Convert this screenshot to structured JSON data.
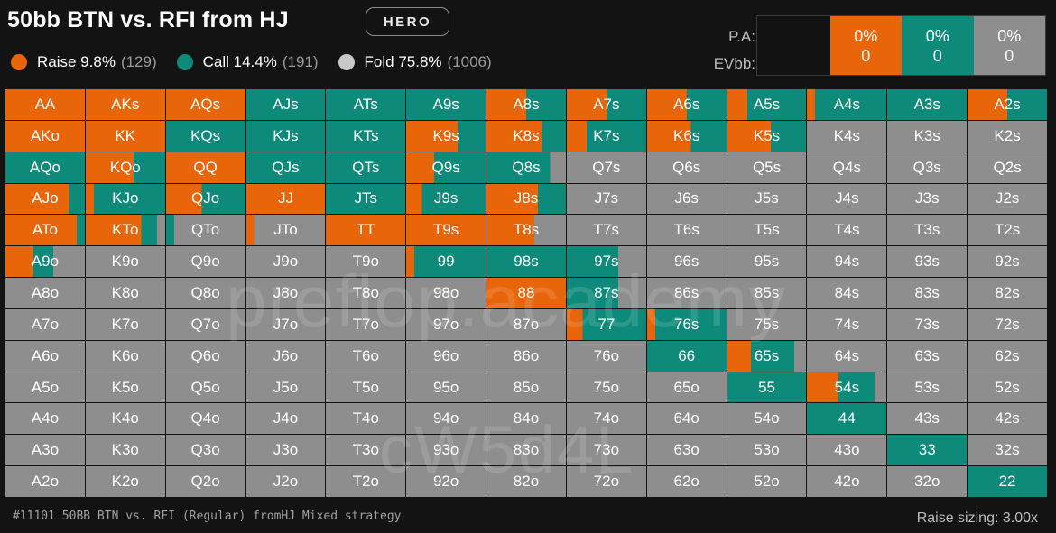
{
  "header": {
    "title": "50bb BTN vs. RFI from HJ",
    "badge": "HERO"
  },
  "legend": [
    {
      "label": "Raise 9.8%",
      "count": "(129)",
      "icon": "raise-dot",
      "color": "#e8650a"
    },
    {
      "label": "Call 14.4%",
      "count": "(191)",
      "icon": "call-dot",
      "color": "#0e8a7a"
    },
    {
      "label": "Fold 75.8%",
      "count": "(1006)",
      "icon": "fold-dot",
      "color": "#c8c8c8"
    }
  ],
  "summary": {
    "labels": [
      "P.A:",
      "EVbb:"
    ],
    "columns": [
      {
        "pct": "0%",
        "value": "0",
        "color": "#e8650a"
      },
      {
        "pct": "0%",
        "value": "0",
        "color": "#0e8a7a"
      },
      {
        "pct": "0%",
        "value": "0",
        "color": "#8e8e8e"
      }
    ]
  },
  "colors": {
    "raise": "#e8650a",
    "call": "#0e8a7a",
    "fold": "#8e8e8e"
  },
  "hands": [
    {
      "label": "AA",
      "raise": 100,
      "call": 0
    },
    {
      "label": "AKs",
      "raise": 100,
      "call": 0
    },
    {
      "label": "AQs",
      "raise": 100,
      "call": 0
    },
    {
      "label": "AJs",
      "raise": 0,
      "call": 100
    },
    {
      "label": "ATs",
      "raise": 0,
      "call": 100
    },
    {
      "label": "A9s",
      "raise": 0,
      "call": 100
    },
    {
      "label": "A8s",
      "raise": 50,
      "call": 50
    },
    {
      "label": "A7s",
      "raise": 50,
      "call": 50
    },
    {
      "label": "A6s",
      "raise": 50,
      "call": 50
    },
    {
      "label": "A5s",
      "raise": 25,
      "call": 75
    },
    {
      "label": "A4s",
      "raise": 10,
      "call": 90
    },
    {
      "label": "A3s",
      "raise": 0,
      "call": 100
    },
    {
      "label": "A2s",
      "raise": 50,
      "call": 50
    },
    {
      "label": "AKo",
      "raise": 100,
      "call": 0
    },
    {
      "label": "KK",
      "raise": 100,
      "call": 0
    },
    {
      "label": "KQs",
      "raise": 0,
      "call": 100
    },
    {
      "label": "KJs",
      "raise": 0,
      "call": 100
    },
    {
      "label": "KTs",
      "raise": 0,
      "call": 100
    },
    {
      "label": "K9s",
      "raise": 65,
      "call": 35
    },
    {
      "label": "K8s",
      "raise": 70,
      "call": 30
    },
    {
      "label": "K7s",
      "raise": 25,
      "call": 75
    },
    {
      "label": "K6s",
      "raise": 55,
      "call": 45
    },
    {
      "label": "K5s",
      "raise": 55,
      "call": 45
    },
    {
      "label": "K4s",
      "raise": 0,
      "call": 0
    },
    {
      "label": "K3s",
      "raise": 0,
      "call": 0
    },
    {
      "label": "K2s",
      "raise": 0,
      "call": 0
    },
    {
      "label": "AQo",
      "raise": 0,
      "call": 100
    },
    {
      "label": "KQo",
      "raise": 60,
      "call": 40
    },
    {
      "label": "QQ",
      "raise": 100,
      "call": 0
    },
    {
      "label": "QJs",
      "raise": 0,
      "call": 100
    },
    {
      "label": "QTs",
      "raise": 0,
      "call": 100
    },
    {
      "label": "Q9s",
      "raise": 35,
      "call": 65
    },
    {
      "label": "Q8s",
      "raise": 0,
      "call": 80
    },
    {
      "label": "Q7s",
      "raise": 0,
      "call": 0
    },
    {
      "label": "Q6s",
      "raise": 0,
      "call": 0
    },
    {
      "label": "Q5s",
      "raise": 0,
      "call": 0
    },
    {
      "label": "Q4s",
      "raise": 0,
      "call": 0
    },
    {
      "label": "Q3s",
      "raise": 0,
      "call": 0
    },
    {
      "label": "Q2s",
      "raise": 0,
      "call": 0
    },
    {
      "label": "AJo",
      "raise": 80,
      "call": 20
    },
    {
      "label": "KJo",
      "raise": 10,
      "call": 90
    },
    {
      "label": "QJo",
      "raise": 45,
      "call": 55
    },
    {
      "label": "JJ",
      "raise": 100,
      "call": 0
    },
    {
      "label": "JTs",
      "raise": 0,
      "call": 100
    },
    {
      "label": "J9s",
      "raise": 20,
      "call": 80
    },
    {
      "label": "J8s",
      "raise": 65,
      "call": 35
    },
    {
      "label": "J7s",
      "raise": 0,
      "call": 0
    },
    {
      "label": "J6s",
      "raise": 0,
      "call": 0
    },
    {
      "label": "J5s",
      "raise": 0,
      "call": 0
    },
    {
      "label": "J4s",
      "raise": 0,
      "call": 0
    },
    {
      "label": "J3s",
      "raise": 0,
      "call": 0
    },
    {
      "label": "J2s",
      "raise": 0,
      "call": 0
    },
    {
      "label": "ATo",
      "raise": 90,
      "call": 10
    },
    {
      "label": "KTo",
      "raise": 70,
      "call": 20
    },
    {
      "label": "QTo",
      "raise": 0,
      "call": 10
    },
    {
      "label": "JTo",
      "raise": 10,
      "call": 0
    },
    {
      "label": "TT",
      "raise": 100,
      "call": 0
    },
    {
      "label": "T9s",
      "raise": 100,
      "call": 0
    },
    {
      "label": "T8s",
      "raise": 60,
      "call": 0
    },
    {
      "label": "T7s",
      "raise": 0,
      "call": 0
    },
    {
      "label": "T6s",
      "raise": 0,
      "call": 0
    },
    {
      "label": "T5s",
      "raise": 0,
      "call": 0
    },
    {
      "label": "T4s",
      "raise": 0,
      "call": 0
    },
    {
      "label": "T3s",
      "raise": 0,
      "call": 0
    },
    {
      "label": "T2s",
      "raise": 0,
      "call": 0
    },
    {
      "label": "A9o",
      "raise": 35,
      "call": 25
    },
    {
      "label": "K9o",
      "raise": 0,
      "call": 0
    },
    {
      "label": "Q9o",
      "raise": 0,
      "call": 0
    },
    {
      "label": "J9o",
      "raise": 0,
      "call": 0
    },
    {
      "label": "T9o",
      "raise": 0,
      "call": 0
    },
    {
      "label": "99",
      "raise": 10,
      "call": 90
    },
    {
      "label": "98s",
      "raise": 0,
      "call": 100
    },
    {
      "label": "97s",
      "raise": 0,
      "call": 65
    },
    {
      "label": "96s",
      "raise": 0,
      "call": 0
    },
    {
      "label": "95s",
      "raise": 0,
      "call": 0
    },
    {
      "label": "94s",
      "raise": 0,
      "call": 0
    },
    {
      "label": "93s",
      "raise": 0,
      "call": 0
    },
    {
      "label": "92s",
      "raise": 0,
      "call": 0
    },
    {
      "label": "A8o",
      "raise": 0,
      "call": 0
    },
    {
      "label": "K8o",
      "raise": 0,
      "call": 0
    },
    {
      "label": "Q8o",
      "raise": 0,
      "call": 0
    },
    {
      "label": "J8o",
      "raise": 0,
      "call": 0
    },
    {
      "label": "T8o",
      "raise": 0,
      "call": 0
    },
    {
      "label": "98o",
      "raise": 0,
      "call": 0
    },
    {
      "label": "88",
      "raise": 100,
      "call": 0
    },
    {
      "label": "87s",
      "raise": 0,
      "call": 65
    },
    {
      "label": "86s",
      "raise": 0,
      "call": 0
    },
    {
      "label": "85s",
      "raise": 0,
      "call": 0
    },
    {
      "label": "84s",
      "raise": 0,
      "call": 0
    },
    {
      "label": "83s",
      "raise": 0,
      "call": 0
    },
    {
      "label": "82s",
      "raise": 0,
      "call": 0
    },
    {
      "label": "A7o",
      "raise": 0,
      "call": 0
    },
    {
      "label": "K7o",
      "raise": 0,
      "call": 0
    },
    {
      "label": "Q7o",
      "raise": 0,
      "call": 0
    },
    {
      "label": "J7o",
      "raise": 0,
      "call": 0
    },
    {
      "label": "T7o",
      "raise": 0,
      "call": 0
    },
    {
      "label": "97o",
      "raise": 0,
      "call": 0
    },
    {
      "label": "87o",
      "raise": 0,
      "call": 0
    },
    {
      "label": "77",
      "raise": 20,
      "call": 80
    },
    {
      "label": "76s",
      "raise": 10,
      "call": 90
    },
    {
      "label": "75s",
      "raise": 0,
      "call": 0
    },
    {
      "label": "74s",
      "raise": 0,
      "call": 0
    },
    {
      "label": "73s",
      "raise": 0,
      "call": 0
    },
    {
      "label": "72s",
      "raise": 0,
      "call": 0
    },
    {
      "label": "A6o",
      "raise": 0,
      "call": 0
    },
    {
      "label": "K6o",
      "raise": 0,
      "call": 0
    },
    {
      "label": "Q6o",
      "raise": 0,
      "call": 0
    },
    {
      "label": "J6o",
      "raise": 0,
      "call": 0
    },
    {
      "label": "T6o",
      "raise": 0,
      "call": 0
    },
    {
      "label": "96o",
      "raise": 0,
      "call": 0
    },
    {
      "label": "86o",
      "raise": 0,
      "call": 0
    },
    {
      "label": "76o",
      "raise": 0,
      "call": 0
    },
    {
      "label": "66",
      "raise": 0,
      "call": 100
    },
    {
      "label": "65s",
      "raise": 30,
      "call": 55
    },
    {
      "label": "64s",
      "raise": 0,
      "call": 0
    },
    {
      "label": "63s",
      "raise": 0,
      "call": 0
    },
    {
      "label": "62s",
      "raise": 0,
      "call": 0
    },
    {
      "label": "A5o",
      "raise": 0,
      "call": 0
    },
    {
      "label": "K5o",
      "raise": 0,
      "call": 0
    },
    {
      "label": "Q5o",
      "raise": 0,
      "call": 0
    },
    {
      "label": "J5o",
      "raise": 0,
      "call": 0
    },
    {
      "label": "T5o",
      "raise": 0,
      "call": 0
    },
    {
      "label": "95o",
      "raise": 0,
      "call": 0
    },
    {
      "label": "85o",
      "raise": 0,
      "call": 0
    },
    {
      "label": "75o",
      "raise": 0,
      "call": 0
    },
    {
      "label": "65o",
      "raise": 0,
      "call": 0
    },
    {
      "label": "55",
      "raise": 0,
      "call": 100
    },
    {
      "label": "54s",
      "raise": 40,
      "call": 45
    },
    {
      "label": "53s",
      "raise": 0,
      "call": 0
    },
    {
      "label": "52s",
      "raise": 0,
      "call": 0
    },
    {
      "label": "A4o",
      "raise": 0,
      "call": 0
    },
    {
      "label": "K4o",
      "raise": 0,
      "call": 0
    },
    {
      "label": "Q4o",
      "raise": 0,
      "call": 0
    },
    {
      "label": "J4o",
      "raise": 0,
      "call": 0
    },
    {
      "label": "T4o",
      "raise": 0,
      "call": 0
    },
    {
      "label": "94o",
      "raise": 0,
      "call": 0
    },
    {
      "label": "84o",
      "raise": 0,
      "call": 0
    },
    {
      "label": "74o",
      "raise": 0,
      "call": 0
    },
    {
      "label": "64o",
      "raise": 0,
      "call": 0
    },
    {
      "label": "54o",
      "raise": 0,
      "call": 0
    },
    {
      "label": "44",
      "raise": 0,
      "call": 100
    },
    {
      "label": "43s",
      "raise": 0,
      "call": 0
    },
    {
      "label": "42s",
      "raise": 0,
      "call": 0
    },
    {
      "label": "A3o",
      "raise": 0,
      "call": 0
    },
    {
      "label": "K3o",
      "raise": 0,
      "call": 0
    },
    {
      "label": "Q3o",
      "raise": 0,
      "call": 0
    },
    {
      "label": "J3o",
      "raise": 0,
      "call": 0
    },
    {
      "label": "T3o",
      "raise": 0,
      "call": 0
    },
    {
      "label": "93o",
      "raise": 0,
      "call": 0
    },
    {
      "label": "83o",
      "raise": 0,
      "call": 0
    },
    {
      "label": "73o",
      "raise": 0,
      "call": 0
    },
    {
      "label": "63o",
      "raise": 0,
      "call": 0
    },
    {
      "label": "53o",
      "raise": 0,
      "call": 0
    },
    {
      "label": "43o",
      "raise": 0,
      "call": 0
    },
    {
      "label": "33",
      "raise": 0,
      "call": 100
    },
    {
      "label": "32s",
      "raise": 0,
      "call": 0
    },
    {
      "label": "A2o",
      "raise": 0,
      "call": 0
    },
    {
      "label": "K2o",
      "raise": 0,
      "call": 0
    },
    {
      "label": "Q2o",
      "raise": 0,
      "call": 0
    },
    {
      "label": "J2o",
      "raise": 0,
      "call": 0
    },
    {
      "label": "T2o",
      "raise": 0,
      "call": 0
    },
    {
      "label": "92o",
      "raise": 0,
      "call": 0
    },
    {
      "label": "82o",
      "raise": 0,
      "call": 0
    },
    {
      "label": "72o",
      "raise": 0,
      "call": 0
    },
    {
      "label": "62o",
      "raise": 0,
      "call": 0
    },
    {
      "label": "52o",
      "raise": 0,
      "call": 0
    },
    {
      "label": "42o",
      "raise": 0,
      "call": 0
    },
    {
      "label": "32o",
      "raise": 0,
      "call": 0
    },
    {
      "label": "22",
      "raise": 0,
      "call": 100
    }
  ],
  "watermarks": [
    "preflop.academy",
    "cW5d4L"
  ],
  "footer": {
    "left": "#11101 50BB BTN vs. RFI (Regular) fromHJ Mixed strategy",
    "right": "Raise sizing: 3.00x"
  }
}
